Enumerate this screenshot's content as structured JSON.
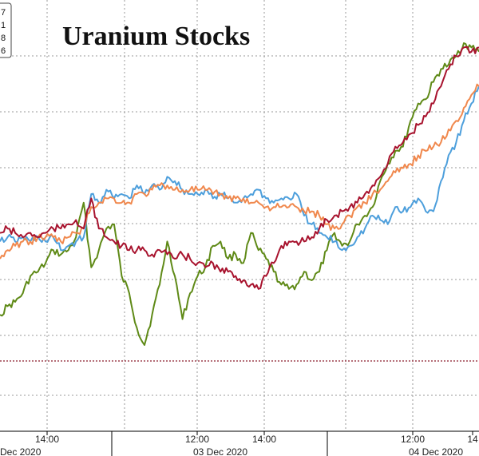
{
  "chart_data": {
    "type": "line",
    "title": "Uranium Stocks",
    "legend_partial": [
      "7",
      "1",
      "8",
      "6"
    ],
    "x_time_ticks": [
      "14:00",
      "12:00",
      "14:00",
      "12:00",
      "14"
    ],
    "x_date_ticks": [
      "Dec 2020",
      "03 Dec 2020",
      "04 Dec 2020"
    ],
    "grid": true,
    "reference_line": {
      "style": "dotted",
      "color": "#8b1a2a"
    },
    "series": [
      {
        "color": "#5f8a17",
        "values": [
          0.73,
          0.71,
          0.7,
          0.68,
          0.64,
          0.63,
          0.61,
          0.58,
          0.59,
          0.58,
          0.55,
          0.47,
          0.62,
          0.58,
          0.53,
          0.52,
          0.64,
          0.68,
          0.76,
          0.8,
          0.73,
          0.66,
          0.56,
          0.64,
          0.74,
          0.68,
          0.64,
          0.62,
          0.57,
          0.56,
          0.6,
          0.59,
          0.61,
          0.54,
          0.58,
          0.6,
          0.63,
          0.66,
          0.67,
          0.66,
          0.63,
          0.65,
          0.63,
          0.58,
          0.54,
          0.57,
          0.56,
          0.52,
          0.5,
          0.48,
          0.42,
          0.38,
          0.35,
          0.34,
          0.28,
          0.24,
          0.23,
          0.19,
          0.16,
          0.15,
          0.13,
          0.1,
          0.11,
          0.12
        ]
      },
      {
        "color": "#4d9fdc",
        "values": [
          0.56,
          0.55,
          0.56,
          0.55,
          0.56,
          0.55,
          0.56,
          0.55,
          0.58,
          0.57,
          0.56,
          0.55,
          0.45,
          0.47,
          0.44,
          0.46,
          0.45,
          0.46,
          0.43,
          0.45,
          0.43,
          0.44,
          0.41,
          0.42,
          0.44,
          0.45,
          0.45,
          0.44,
          0.46,
          0.45,
          0.46,
          0.47,
          0.46,
          0.45,
          0.44,
          0.46,
          0.47,
          0.46,
          0.46,
          0.45,
          0.5,
          0.52,
          0.54,
          0.55,
          0.56,
          0.58,
          0.57,
          0.55,
          0.53,
          0.5,
          0.51,
          0.52,
          0.48,
          0.49,
          0.48,
          0.46,
          0.49,
          0.49,
          0.42,
          0.36,
          0.33,
          0.28,
          0.24,
          0.2
        ]
      },
      {
        "color": "#f0884d",
        "values": [
          0.6,
          0.58,
          0.57,
          0.56,
          0.56,
          0.55,
          0.55,
          0.55,
          0.56,
          0.55,
          0.54,
          0.53,
          0.48,
          0.47,
          0.46,
          0.46,
          0.47,
          0.47,
          0.45,
          0.45,
          0.44,
          0.43,
          0.43,
          0.44,
          0.44,
          0.44,
          0.44,
          0.44,
          0.45,
          0.45,
          0.46,
          0.46,
          0.46,
          0.47,
          0.47,
          0.48,
          0.48,
          0.48,
          0.48,
          0.48,
          0.49,
          0.49,
          0.5,
          0.52,
          0.53,
          0.52,
          0.5,
          0.48,
          0.47,
          0.45,
          0.44,
          0.42,
          0.4,
          0.39,
          0.38,
          0.36,
          0.35,
          0.34,
          0.33,
          0.3,
          0.28,
          0.25,
          0.22,
          0.2
        ]
      },
      {
        "color": "#a8132e",
        "values": [
          0.54,
          0.53,
          0.54,
          0.55,
          0.54,
          0.55,
          0.54,
          0.53,
          0.53,
          0.52,
          0.51,
          0.53,
          0.46,
          0.53,
          0.55,
          0.56,
          0.57,
          0.58,
          0.58,
          0.58,
          0.59,
          0.58,
          0.59,
          0.6,
          0.59,
          0.6,
          0.61,
          0.62,
          0.61,
          0.63,
          0.63,
          0.64,
          0.65,
          0.66,
          0.67,
          0.64,
          0.61,
          0.57,
          0.56,
          0.56,
          0.56,
          0.55,
          0.53,
          0.51,
          0.5,
          0.49,
          0.48,
          0.47,
          0.45,
          0.43,
          0.41,
          0.38,
          0.34,
          0.33,
          0.31,
          0.29,
          0.27,
          0.24,
          0.2,
          0.16,
          0.13,
          0.11,
          0.12,
          0.11
        ]
      }
    ]
  }
}
